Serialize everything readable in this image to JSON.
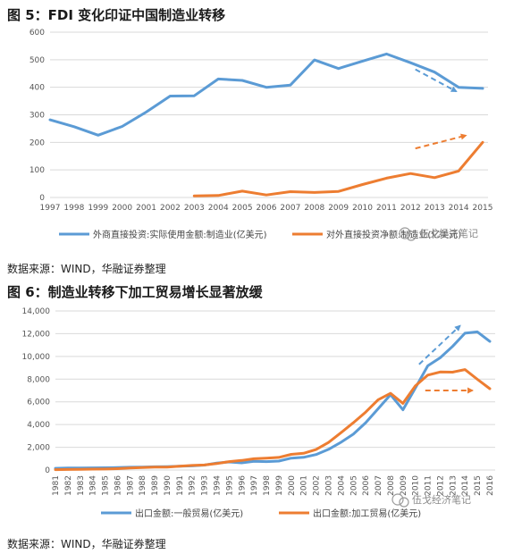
{
  "figure5": {
    "title": "图 5：FDI 变化印证中国制造业转移",
    "source": "数据来源：WIND，华融证券整理"
  },
  "figure6": {
    "title": "图 6：制造业转移下加工贸易增长显著放缓",
    "source": "数据来源：WIND，华融证券整理"
  },
  "watermark": {
    "text": "伍戈经济笔记"
  },
  "colors": {
    "blue": "#5b9bd5",
    "orange": "#ed7d31"
  },
  "chart_data": [
    {
      "type": "line",
      "categories": [
        "1997",
        "1998",
        "1999",
        "2000",
        "2001",
        "2002",
        "2003",
        "2004",
        "2005",
        "2006",
        "2007",
        "2008",
        "2009",
        "2010",
        "2011",
        "2012",
        "2013",
        "2014",
        "2015"
      ],
      "ylim": [
        0,
        600
      ],
      "yticks": [
        0,
        100,
        200,
        300,
        400,
        500,
        600
      ],
      "grid": true,
      "legend": "bottom",
      "series": [
        {
          "name": "外商直接投资:实际使用金额:制造业(亿美元)",
          "color": "#5b9bd5",
          "values": [
            282,
            257,
            226,
            258,
            310,
            368,
            369,
            430,
            425,
            400,
            408,
            499,
            468,
            495,
            521,
            489,
            455,
            400,
            396
          ]
        },
        {
          "name": "对外直接投资净额:制造业(亿美元)",
          "color": "#ed7d31",
          "values": [
            null,
            null,
            null,
            null,
            null,
            null,
            6,
            7,
            23,
            9,
            21,
            18,
            22,
            47,
            70,
            87,
            72,
            96,
            200
          ]
        }
      ],
      "annotations": [
        {
          "style": "dashed-arrow",
          "color": "#5b9bd5",
          "x_from": 2012.2,
          "y_from": 465,
          "x_to": 2013.9,
          "y_to": 385
        },
        {
          "style": "dashed-arrow",
          "color": "#ed7d31",
          "x_from": 2012.2,
          "y_from": 178,
          "x_to": 2014.3,
          "y_to": 225
        }
      ]
    },
    {
      "type": "line",
      "categories": [
        "1981",
        "1982",
        "1983",
        "1984",
        "1985",
        "1986",
        "1987",
        "1988",
        "1989",
        "1990",
        "1991",
        "1992",
        "1993",
        "1994",
        "1995",
        "1996",
        "1997",
        "1998",
        "1999",
        "2000",
        "2001",
        "2002",
        "2003",
        "2004",
        "2005",
        "2006",
        "2007",
        "2008",
        "2009",
        "2010",
        "2011",
        "2012",
        "2013",
        "2014",
        "2015",
        "2016"
      ],
      "ylim": [
        0,
        14000
      ],
      "yticks": [
        0,
        2000,
        4000,
        6000,
        8000,
        10000,
        12000,
        14000
      ],
      "tick_labels": [
        "0",
        "2,000",
        "4,000",
        "6,000",
        "8,000",
        "10,000",
        "12,000",
        "14,000"
      ],
      "grid": true,
      "legend": "bottom",
      "series": [
        {
          "name": "出口金额:一般贸易(亿美元)",
          "color": "#5b9bd5",
          "values": [
            150,
            170,
            180,
            190,
            200,
            210,
            240,
            260,
            280,
            300,
            330,
            360,
            430,
            610,
            710,
            630,
            760,
            740,
            790,
            1050,
            1120,
            1360,
            1820,
            2440,
            3150,
            4160,
            5390,
            6630,
            5300,
            7210,
            9170,
            9880,
            10880,
            12040,
            12160,
            11320
          ]
        },
        {
          "name": "出口金额:加工贸易(亿美元)",
          "color": "#ed7d31",
          "values": [
            30,
            50,
            60,
            80,
            90,
            120,
            170,
            220,
            260,
            250,
            330,
            400,
            440,
            570,
            740,
            840,
            990,
            1050,
            1110,
            1380,
            1470,
            1800,
            2420,
            3280,
            4160,
            5100,
            6180,
            6750,
            5870,
            7400,
            8350,
            8630,
            8610,
            8840,
            7980,
            7160
          ]
        }
      ],
      "annotations": [
        {
          "style": "dashed-arrow",
          "color": "#5b9bd5",
          "x_from": 2010.3,
          "y_from": 9300,
          "x_to": 2013.6,
          "y_to": 12700
        },
        {
          "style": "dashed-arrow",
          "color": "#ed7d31",
          "x_from": 2010.8,
          "y_from": 7000,
          "x_to": 2014.6,
          "y_to": 7000
        }
      ]
    }
  ]
}
